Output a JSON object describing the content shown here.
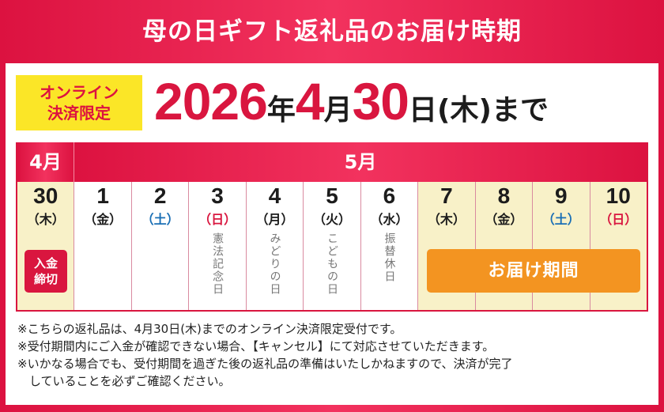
{
  "title": "母の日ギフト返礼品のお届け時期",
  "badge": {
    "line1": "オンライン",
    "line2": "決済限定"
  },
  "deadline": {
    "year": "2026",
    "year_unit": "年",
    "month": "4",
    "month_unit": "月",
    "day": "30",
    "day_unit": "日",
    "weekday": "(木)",
    "suffix": "まで"
  },
  "calendar": {
    "month_april": "4月",
    "month_may": "5月",
    "days": [
      {
        "day": "30",
        "weekday": "（木）",
        "type": "weekday",
        "highlight": true,
        "holiday": ""
      },
      {
        "day": "1",
        "weekday": "（金）",
        "type": "weekday",
        "highlight": false,
        "holiday": ""
      },
      {
        "day": "2",
        "weekday": "（土）",
        "type": "sat",
        "highlight": false,
        "holiday": ""
      },
      {
        "day": "3",
        "weekday": "（日）",
        "type": "sun",
        "highlight": false,
        "holiday": "憲法記念日"
      },
      {
        "day": "4",
        "weekday": "（月）",
        "type": "weekday",
        "highlight": false,
        "holiday": "みどりの日"
      },
      {
        "day": "5",
        "weekday": "（火）",
        "type": "weekday",
        "highlight": false,
        "holiday": "こどもの日"
      },
      {
        "day": "6",
        "weekday": "（水）",
        "type": "weekday",
        "highlight": false,
        "holiday": "振替休日"
      },
      {
        "day": "7",
        "weekday": "（木）",
        "type": "weekday",
        "highlight": true,
        "holiday": ""
      },
      {
        "day": "8",
        "weekday": "（金）",
        "type": "weekday",
        "highlight": true,
        "holiday": ""
      },
      {
        "day": "9",
        "weekday": "（土）",
        "type": "sat",
        "highlight": true,
        "holiday": ""
      },
      {
        "day": "10",
        "weekday": "（日）",
        "type": "sun",
        "highlight": true,
        "holiday": ""
      }
    ],
    "payment_deadline": {
      "line1": "入金",
      "line2": "締切"
    },
    "delivery_period": "お届け期間",
    "colors": {
      "red": "#d9163f",
      "highlight": "#f8f1c8",
      "orange": "#f39421",
      "saturday": "#1a6fb5"
    }
  },
  "notes": [
    "※こちらの返礼品は、4月30日(木)までのオンライン決済限定受付です。",
    "※受付期間内にご入金が確認できない場合、【キャンセル】にて対応させていただきます。",
    "※いかなる場合でも、受付期間を過ぎた後の返礼品の準備はいたしかねますので、決済が完了",
    "していることを必ずご確認ください。"
  ]
}
